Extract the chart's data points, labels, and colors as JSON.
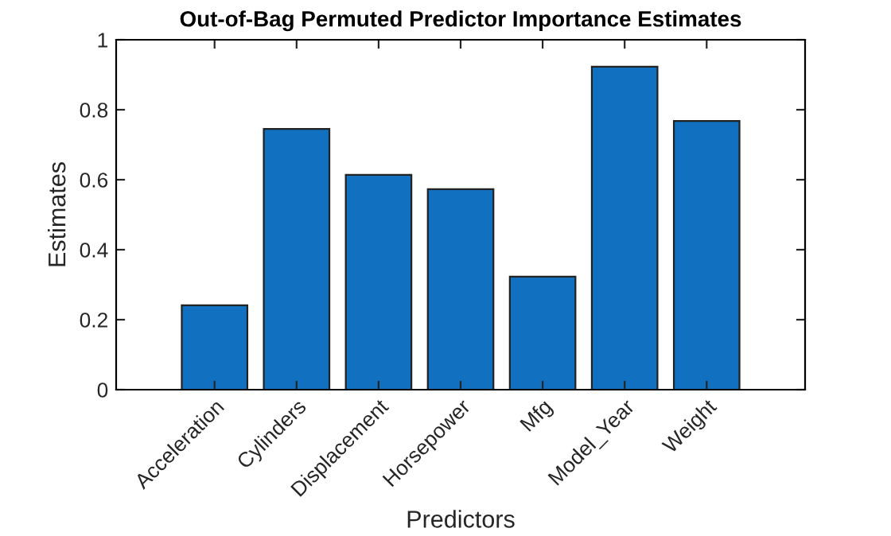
{
  "chart_data": {
    "type": "bar",
    "title": "Out-of-Bag Permuted Predictor Importance Estimates",
    "xlabel": "Predictors",
    "ylabel": "Estimates",
    "categories": [
      "Acceleration",
      "Cylinders",
      "Displacement",
      "Horsepower",
      "Mfg",
      "Model_Year",
      "Weight"
    ],
    "values": [
      0.241,
      0.745,
      0.614,
      0.573,
      0.323,
      0.923,
      0.768
    ],
    "color": "#1170bf",
    "ylim": [
      0,
      1
    ],
    "yticks": [
      0,
      0.2,
      0.4,
      0.6,
      0.8,
      1
    ],
    "grid": false,
    "legend": false
  }
}
